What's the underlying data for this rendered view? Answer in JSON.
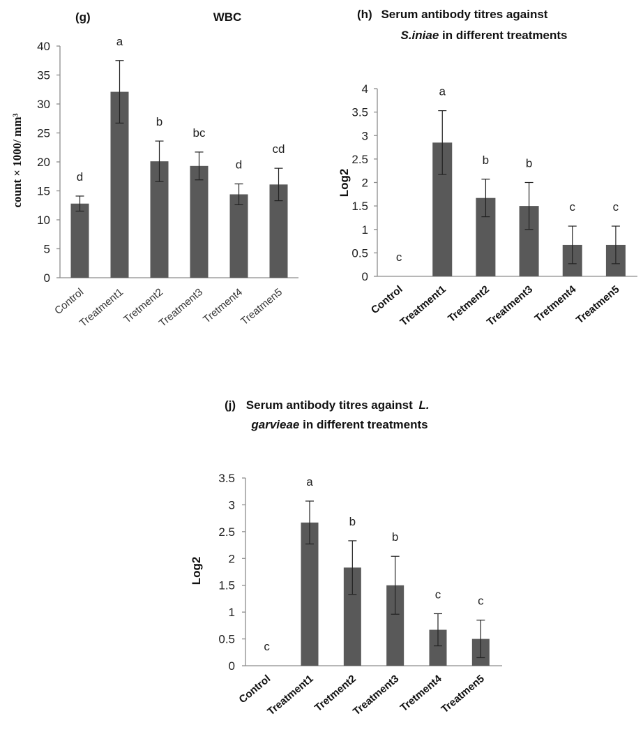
{
  "chart_data": [
    {
      "type": "bar",
      "panel_label": "(g)",
      "title": "WBC",
      "ylabel": "count × 1000/ mm³",
      "ylim": [
        0,
        40
      ],
      "yticks": [
        0,
        5,
        10,
        15,
        20,
        25,
        30,
        35,
        40
      ],
      "categories": [
        "Control",
        "Treatment1",
        "Tretment2",
        "Treatment3",
        "Tretment4",
        "Treatmen5"
      ],
      "values": [
        12.8,
        32.1,
        20.1,
        19.3,
        14.4,
        16.1
      ],
      "errors": [
        1.3,
        5.4,
        3.5,
        2.4,
        1.8,
        2.8
      ],
      "significance": [
        "d",
        "a",
        "b",
        "bc",
        "d",
        "cd"
      ],
      "bold_categories": false
    },
    {
      "type": "bar",
      "panel_label": "(h)",
      "title_line1": "Serum antibody titres against",
      "title_italic": "S.iniae",
      "title_line2_rest": " in different treatments",
      "ylabel": "Log2",
      "ylim": [
        0,
        4
      ],
      "yticks": [
        0,
        0.5,
        1,
        1.5,
        2,
        2.5,
        3,
        3.5,
        4
      ],
      "categories": [
        "Control",
        "Treatment1",
        "Tretment2",
        "Treatment3",
        "Tretment4",
        "Treatmen5"
      ],
      "values": [
        0,
        2.85,
        1.67,
        1.5,
        0.67,
        0.67
      ],
      "errors": [
        0,
        0.68,
        0.4,
        0.5,
        0.4,
        0.4
      ],
      "significance": [
        "c",
        "a",
        "b",
        "b",
        "c",
        "c"
      ],
      "bold_categories": true
    },
    {
      "type": "bar",
      "panel_label": "(j)",
      "title_line1": "Serum antibody titres against",
      "title_italic": "L.",
      "title_italic2": "garvieae",
      "title_line2_rest": " in different treatments",
      "ylabel": "Log2",
      "ylim": [
        0,
        3.5
      ],
      "yticks": [
        0,
        0.5,
        1,
        1.5,
        2,
        2.5,
        3,
        3.5
      ],
      "categories": [
        "Control",
        "Treatment1",
        "Tretment2",
        "Treatment3",
        "Tretment4",
        "Treatmen5"
      ],
      "values": [
        0,
        2.67,
        1.83,
        1.5,
        0.67,
        0.5
      ],
      "errors": [
        0,
        0.4,
        0.5,
        0.54,
        0.3,
        0.35
      ],
      "significance": [
        "c",
        "a",
        "b",
        "b",
        "c",
        "c"
      ],
      "bold_categories": true
    }
  ]
}
